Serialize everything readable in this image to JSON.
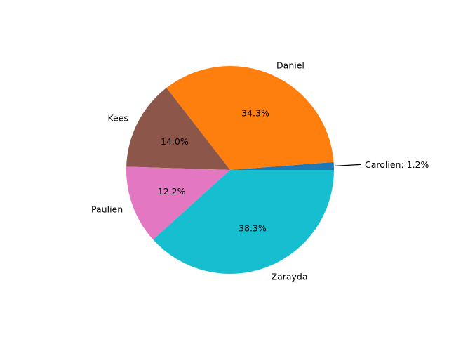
{
  "chart_data": {
    "type": "pie",
    "slices": [
      {
        "label": "Carolien",
        "percent": 1.2,
        "percent_label": "",
        "color": "#1f77b4",
        "callout_text": "Carolien: 1.2%"
      },
      {
        "label": "Daniel",
        "percent": 34.3,
        "percent_label": "34.3%",
        "color": "#ff7f0e",
        "callout_text": ""
      },
      {
        "label": "Kees",
        "percent": 14.0,
        "percent_label": "14.0%",
        "color": "#8c564b",
        "callout_text": ""
      },
      {
        "label": "Paulien",
        "percent": 12.2,
        "percent_label": "12.2%",
        "color": "#e377c2",
        "callout_text": ""
      },
      {
        "label": "Zarayda",
        "percent": 38.3,
        "percent_label": "38.3%",
        "color": "#17becf",
        "callout_text": ""
      }
    ],
    "start_angle_deg": 0,
    "direction": "counterclockwise"
  }
}
